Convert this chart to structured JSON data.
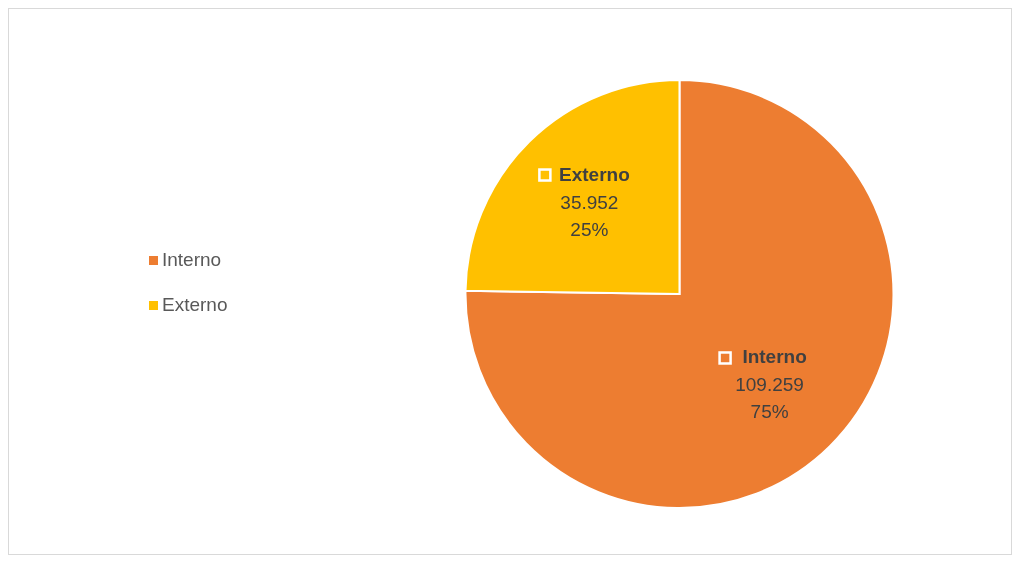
{
  "chart_data": {
    "type": "pie",
    "categories": [
      "Interno",
      "Externo"
    ],
    "values": [
      109259,
      35952
    ],
    "colors": [
      "#ed7d31",
      "#ffc000"
    ],
    "value_labels": [
      "109.259\n75%",
      "35.952\n25%"
    ],
    "legend": "left"
  }
}
